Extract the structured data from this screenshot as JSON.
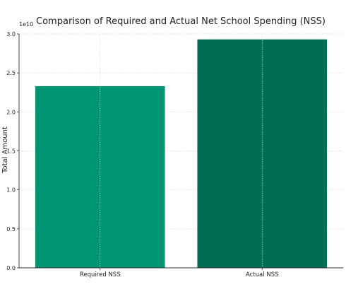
{
  "chart_data": {
    "type": "bar",
    "title": "Comparison of Required and Actual Net School Spending (NSS)",
    "xlabel": "",
    "ylabel": "Total Amount",
    "offset_text": "1e10",
    "categories": [
      "Required NSS",
      "Actual NSS"
    ],
    "values": [
      23300000000,
      29300000000
    ],
    "colors": [
      "#009473",
      "#006e55"
    ],
    "ylim": [
      0,
      30000000000
    ],
    "yticks": [
      0,
      5000000000,
      10000000000,
      15000000000,
      20000000000,
      25000000000,
      30000000000
    ],
    "ytick_labels": [
      "0.0",
      "0.5",
      "1.0",
      "1.5",
      "2.0",
      "2.5",
      "3.0"
    ],
    "grid": true
  }
}
